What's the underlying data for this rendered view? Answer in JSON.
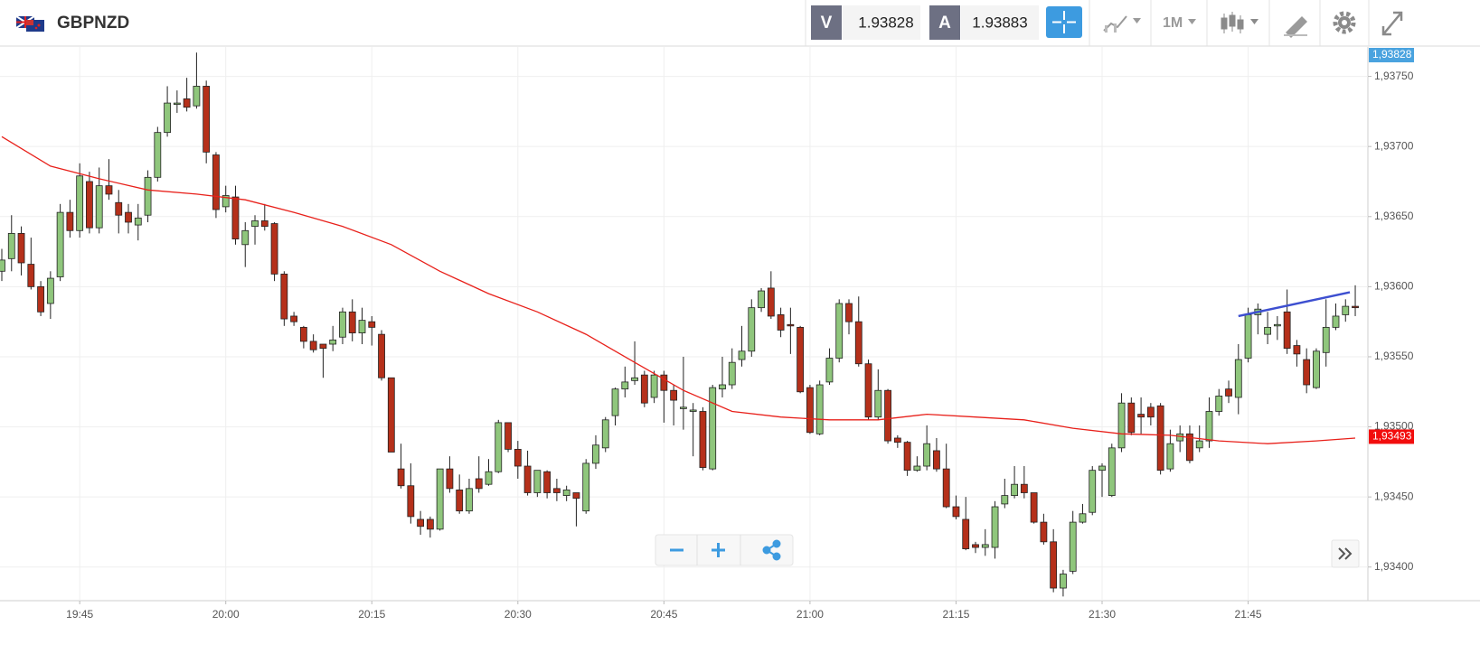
{
  "toolbar": {
    "symbol": "GBPNZD",
    "bid_label": "V",
    "bid": "1.93828",
    "ask_label": "A",
    "ask": "1.93883",
    "timeframe": "1M"
  },
  "chart_data": {
    "type": "candlestick",
    "x": [
      "19:37",
      "19:38",
      "19:39",
      "19:40",
      "19:41",
      "19:42",
      "19:43",
      "19:44",
      "19:45",
      "19:46",
      "19:47",
      "19:48",
      "19:49",
      "19:50",
      "19:51",
      "19:52",
      "19:53",
      "19:54",
      "19:55",
      "19:56",
      "19:57",
      "19:58",
      "19:59",
      "20:00",
      "20:01",
      "20:02",
      "20:03",
      "20:04",
      "20:05",
      "20:06",
      "20:07",
      "20:08",
      "20:09",
      "20:10",
      "20:11",
      "20:12",
      "20:13",
      "20:14",
      "20:15",
      "20:16",
      "20:17",
      "20:18",
      "20:19",
      "20:20",
      "20:21",
      "20:22",
      "20:23",
      "20:24",
      "20:25",
      "20:26",
      "20:27",
      "20:28",
      "20:29",
      "20:30",
      "20:31",
      "20:32",
      "20:33",
      "20:34",
      "20:35",
      "20:36",
      "20:37",
      "20:38",
      "20:39",
      "20:40",
      "20:41",
      "20:42",
      "20:43",
      "20:44",
      "20:45",
      "20:46",
      "20:47",
      "20:48",
      "20:49",
      "20:50",
      "20:51",
      "20:52",
      "20:53",
      "20:54",
      "20:55",
      "20:56",
      "20:57",
      "20:58",
      "20:59",
      "21:00",
      "21:01",
      "21:02",
      "21:03",
      "21:04",
      "21:05",
      "21:06",
      "21:07",
      "21:08",
      "21:09",
      "21:10",
      "21:11",
      "21:12",
      "21:13",
      "21:14",
      "21:15",
      "21:16",
      "21:17",
      "21:18",
      "21:19",
      "21:20",
      "21:21",
      "21:22",
      "21:23",
      "21:24",
      "21:25",
      "21:26",
      "21:27",
      "21:28",
      "21:29",
      "21:30",
      "21:31",
      "21:32",
      "21:33",
      "21:34",
      "21:35",
      "21:36",
      "21:37",
      "21:38",
      "21:39",
      "21:40",
      "21:41",
      "21:42",
      "21:43",
      "21:44",
      "21:45",
      "21:46",
      "21:47",
      "21:48",
      "21:49",
      "21:50",
      "21:51",
      "21:52",
      "21:53",
      "21:54",
      "21:55",
      "21:56"
    ],
    "ohlc": [
      [
        1.93611,
        1.93627,
        1.93604,
        1.93619
      ],
      [
        1.9362,
        1.93651,
        1.93611,
        1.93638
      ],
      [
        1.93638,
        1.93643,
        1.93608,
        1.93617
      ],
      [
        1.93616,
        1.93635,
        1.93598,
        1.936
      ],
      [
        1.936,
        1.93604,
        1.93579,
        1.93582
      ],
      [
        1.93588,
        1.93611,
        1.93577,
        1.93606
      ],
      [
        1.93607,
        1.93659,
        1.93604,
        1.93653
      ],
      [
        1.93653,
        1.93662,
        1.93635,
        1.9364
      ],
      [
        1.9364,
        1.93688,
        1.93635,
        1.93679
      ],
      [
        1.93675,
        1.93682,
        1.93638,
        1.93642
      ],
      [
        1.93642,
        1.93685,
        1.93638,
        1.93672
      ],
      [
        1.93672,
        1.93691,
        1.93662,
        1.93666
      ],
      [
        1.9366,
        1.93669,
        1.93638,
        1.93651
      ],
      [
        1.93653,
        1.93659,
        1.93638,
        1.93646
      ],
      [
        1.93644,
        1.93659,
        1.93633,
        1.93649
      ],
      [
        1.93651,
        1.93683,
        1.93646,
        1.93678
      ],
      [
        1.93678,
        1.93714,
        1.93675,
        1.9371
      ],
      [
        1.9371,
        1.93743,
        1.93707,
        1.93731
      ],
      [
        1.9373,
        1.9374,
        1.93724,
        1.93731
      ],
      [
        1.93734,
        1.93749,
        1.93725,
        1.93728
      ],
      [
        1.93729,
        1.93767,
        1.93727,
        1.93743
      ],
      [
        1.93743,
        1.93747,
        1.93688,
        1.93696
      ],
      [
        1.93694,
        1.93696,
        1.93649,
        1.93655
      ],
      [
        1.93657,
        1.93672,
        1.93653,
        1.93665
      ],
      [
        1.93664,
        1.93672,
        1.9363,
        1.93634
      ],
      [
        1.9363,
        1.93646,
        1.93614,
        1.9364
      ],
      [
        1.93643,
        1.93651,
        1.9363,
        1.93647
      ],
      [
        1.93647,
        1.93659,
        1.9364,
        1.93643
      ],
      [
        1.93645,
        1.93646,
        1.93604,
        1.93609
      ],
      [
        1.93609,
        1.93611,
        1.93572,
        1.93577
      ],
      [
        1.93579,
        1.93582,
        1.93572,
        1.93575
      ],
      [
        1.93571,
        1.93572,
        1.93556,
        1.93561
      ],
      [
        1.93561,
        1.93566,
        1.93553,
        1.93555
      ],
      [
        1.93559,
        1.93559,
        1.93535,
        1.93556
      ],
      [
        1.93559,
        1.93572,
        1.93554,
        1.93562
      ],
      [
        1.93564,
        1.93585,
        1.93559,
        1.93582
      ],
      [
        1.93582,
        1.93591,
        1.93561,
        1.93567
      ],
      [
        1.93567,
        1.93585,
        1.93559,
        1.93576
      ],
      [
        1.93575,
        1.93579,
        1.93558,
        1.93571
      ],
      [
        1.93566,
        1.93569,
        1.93533,
        1.93535
      ],
      [
        1.93535,
        1.93535,
        1.93482,
        1.93482
      ],
      [
        1.9347,
        1.93488,
        1.93456,
        1.93458
      ],
      [
        1.93458,
        1.93474,
        1.93431,
        1.93436
      ],
      [
        1.93434,
        1.9344,
        1.93423,
        1.93429
      ],
      [
        1.93434,
        1.93436,
        1.93421,
        1.93427
      ],
      [
        1.93427,
        1.9347,
        1.93426,
        1.9347
      ],
      [
        1.9347,
        1.93479,
        1.93453,
        1.93456
      ],
      [
        1.93455,
        1.93466,
        1.93438,
        1.9344
      ],
      [
        1.9344,
        1.93463,
        1.93438,
        1.93456
      ],
      [
        1.93463,
        1.93479,
        1.93453,
        1.93456
      ],
      [
        1.93459,
        1.93477,
        1.93458,
        1.93468
      ],
      [
        1.93468,
        1.93505,
        1.93467,
        1.93503
      ],
      [
        1.93503,
        1.93503,
        1.93482,
        1.93484
      ],
      [
        1.93484,
        1.9349,
        1.93463,
        1.93472
      ],
      [
        1.93472,
        1.93483,
        1.93451,
        1.93453
      ],
      [
        1.93453,
        1.93469,
        1.9345,
        1.93469
      ],
      [
        1.93468,
        1.93469,
        1.93449,
        1.93453
      ],
      [
        1.93456,
        1.93463,
        1.93447,
        1.93453
      ],
      [
        1.93451,
        1.93458,
        1.93447,
        1.93455
      ],
      [
        1.93453,
        1.93453,
        1.93429,
        1.93449
      ],
      [
        1.9344,
        1.93477,
        1.93438,
        1.93474
      ],
      [
        1.93474,
        1.93494,
        1.9347,
        1.93487
      ],
      [
        1.93485,
        1.93507,
        1.93482,
        1.93505
      ],
      [
        1.93508,
        1.93528,
        1.93501,
        1.93527
      ],
      [
        1.93527,
        1.93543,
        1.93521,
        1.93532
      ],
      [
        1.93533,
        1.93561,
        1.9353,
        1.93535
      ],
      [
        1.93537,
        1.9354,
        1.93514,
        1.93517
      ],
      [
        1.93521,
        1.9354,
        1.93517,
        1.93537
      ],
      [
        1.93537,
        1.9354,
        1.93503,
        1.93526
      ],
      [
        1.93526,
        1.9353,
        1.93501,
        1.93519
      ],
      [
        1.93513,
        1.9355,
        1.93498,
        1.93514
      ],
      [
        1.93511,
        1.93517,
        1.93479,
        1.93512
      ],
      [
        1.93511,
        1.93514,
        1.93469,
        1.93471
      ],
      [
        1.9347,
        1.9353,
        1.93469,
        1.93528
      ],
      [
        1.93527,
        1.9355,
        1.93521,
        1.9353
      ],
      [
        1.9353,
        1.93556,
        1.93527,
        1.93546
      ],
      [
        1.93548,
        1.93572,
        1.93543,
        1.93554
      ],
      [
        1.93554,
        1.93591,
        1.9355,
        1.93585
      ],
      [
        1.93585,
        1.93599,
        1.93582,
        1.93597
      ],
      [
        1.93599,
        1.93611,
        1.93577,
        1.93579
      ],
      [
        1.9358,
        1.93585,
        1.93564,
        1.93569
      ],
      [
        1.93573,
        1.93585,
        1.93552,
        1.93572
      ],
      [
        1.93571,
        1.93572,
        1.93524,
        1.93525
      ],
      [
        1.93528,
        1.9353,
        1.93495,
        1.93496
      ],
      [
        1.93495,
        1.93533,
        1.93494,
        1.9353
      ],
      [
        1.93532,
        1.93556,
        1.9353,
        1.93549
      ],
      [
        1.93549,
        1.93591,
        1.93546,
        1.93588
      ],
      [
        1.93588,
        1.93591,
        1.93566,
        1.93575
      ],
      [
        1.93575,
        1.93593,
        1.93543,
        1.93545
      ],
      [
        1.93545,
        1.93548,
        1.93505,
        1.93507
      ],
      [
        1.93507,
        1.93541,
        1.93505,
        1.93526
      ],
      [
        1.93526,
        1.93527,
        1.93488,
        1.9349
      ],
      [
        1.93492,
        1.93494,
        1.93485,
        1.93489
      ],
      [
        1.93489,
        1.9349,
        1.93465,
        1.93469
      ],
      [
        1.93469,
        1.93479,
        1.93468,
        1.93472
      ],
      [
        1.93472,
        1.93501,
        1.93469,
        1.93488
      ],
      [
        1.93483,
        1.93492,
        1.93468,
        1.9347
      ],
      [
        1.9347,
        1.93488,
        1.93442,
        1.93443
      ],
      [
        1.93443,
        1.93451,
        1.93434,
        1.93436
      ],
      [
        1.93434,
        1.9345,
        1.93412,
        1.93413
      ],
      [
        1.93416,
        1.93418,
        1.9341,
        1.93414
      ],
      [
        1.93414,
        1.93427,
        1.93408,
        1.93416
      ],
      [
        1.93414,
        1.93447,
        1.93406,
        1.93443
      ],
      [
        1.93445,
        1.93463,
        1.93442,
        1.93451
      ],
      [
        1.93451,
        1.93472,
        1.93449,
        1.93459
      ],
      [
        1.93459,
        1.93472,
        1.93449,
        1.93453
      ],
      [
        1.93453,
        1.93453,
        1.93431,
        1.93432
      ],
      [
        1.93432,
        1.93438,
        1.93416,
        1.93418
      ],
      [
        1.93418,
        1.93427,
        1.93382,
        1.93385
      ],
      [
        1.93385,
        1.93398,
        1.93379,
        1.93395
      ],
      [
        1.93397,
        1.9344,
        1.93395,
        1.93432
      ],
      [
        1.93432,
        1.93445,
        1.93431,
        1.93438
      ],
      [
        1.93439,
        1.93472,
        1.93437,
        1.93469
      ],
      [
        1.93469,
        1.93474,
        1.9345,
        1.93472
      ],
      [
        1.93451,
        1.93488,
        1.9345,
        1.93485
      ],
      [
        1.93485,
        1.93524,
        1.93482,
        1.93517
      ],
      [
        1.93517,
        1.93521,
        1.93494,
        1.93496
      ],
      [
        1.93509,
        1.93521,
        1.93495,
        1.93507
      ],
      [
        1.93514,
        1.93517,
        1.93501,
        1.93507
      ],
      [
        1.93515,
        1.93517,
        1.93466,
        1.93469
      ],
      [
        1.9347,
        1.93498,
        1.93468,
        1.93488
      ],
      [
        1.9349,
        1.93501,
        1.93482,
        1.93495
      ],
      [
        1.93495,
        1.93501,
        1.93474,
        1.93476
      ],
      [
        1.93485,
        1.93501,
        1.93482,
        1.9349
      ],
      [
        1.9349,
        1.93521,
        1.93485,
        1.93511
      ],
      [
        1.93511,
        1.93527,
        1.93508,
        1.93522
      ],
      [
        1.93527,
        1.93533,
        1.93517,
        1.93522
      ],
      [
        1.93521,
        1.93559,
        1.93509,
        1.93548
      ],
      [
        1.93549,
        1.93585,
        1.93546,
        1.9358
      ],
      [
        1.9358,
        1.93588,
        1.93566,
        1.93584
      ],
      [
        1.93566,
        1.93582,
        1.93559,
        1.93571
      ],
      [
        1.93572,
        1.93579,
        1.93562,
        1.93573
      ],
      [
        1.93582,
        1.93598,
        1.93552,
        1.93556
      ],
      [
        1.93558,
        1.93562,
        1.93543,
        1.93552
      ],
      [
        1.93548,
        1.93556,
        1.93524,
        1.9353
      ],
      [
        1.93528,
        1.93556,
        1.93527,
        1.93554
      ],
      [
        1.93553,
        1.93591,
        1.93543,
        1.93571
      ],
      [
        1.93571,
        1.93588,
        1.93569,
        1.93579
      ],
      [
        1.9358,
        1.93591,
        1.93575,
        1.93586
      ],
      [
        1.93586,
        1.93601,
        1.93579,
        1.93585
      ]
    ],
    "up_color": "#8fc67c",
    "down_color": "#b5301a",
    "moving_average": {
      "color": "#e8201a",
      "x": [
        "19:37",
        "19:42",
        "19:47",
        "19:52",
        "19:57",
        "20:02",
        "20:07",
        "20:12",
        "20:17",
        "20:22",
        "20:27",
        "20:32",
        "20:37",
        "20:42",
        "20:47",
        "20:52",
        "20:57",
        "21:02",
        "21:07",
        "21:12",
        "21:17",
        "21:22",
        "21:27",
        "21:32",
        "21:37",
        "21:42",
        "21:47",
        "21:52",
        "21:56"
      ],
      "values": [
        1.93707,
        1.93686,
        1.93677,
        1.93669,
        1.93666,
        1.93662,
        1.93653,
        1.93643,
        1.9363,
        1.93611,
        1.93595,
        1.93582,
        1.93566,
        1.93546,
        1.93526,
        1.93511,
        1.93507,
        1.93505,
        1.93505,
        1.93509,
        1.93507,
        1.93505,
        1.93499,
        1.93495,
        1.93494,
        1.9349,
        1.93488,
        1.9349,
        1.93492
      ]
    },
    "trendline": {
      "color": "#3d4fd0",
      "x": [
        "21:44",
        "21:56"
      ],
      "values": [
        1.93579,
        1.93596
      ]
    },
    "price_tags": [
      {
        "value": 1.93828,
        "label": "1,93828",
        "color": "#4aa3df"
      },
      {
        "value": 1.93493,
        "label": "1,93493",
        "color": "#f20d0d"
      }
    ],
    "ylim": [
      1.93376,
      1.93771
    ],
    "yticks": [
      {
        "value": 1.934,
        "label": "1,93400"
      },
      {
        "value": 1.9345,
        "label": "1,93450"
      },
      {
        "value": 1.935,
        "label": "1,93500"
      },
      {
        "value": 1.9355,
        "label": "1,93550"
      },
      {
        "value": 1.936,
        "label": "1,93600"
      },
      {
        "value": 1.9365,
        "label": "1,93650"
      },
      {
        "value": 1.937,
        "label": "1,93700"
      },
      {
        "value": 1.9375,
        "label": "1,93750"
      }
    ],
    "xticks": [
      "19:45",
      "20:00",
      "20:15",
      "20:30",
      "20:45",
      "21:00",
      "21:15",
      "21:30",
      "21:45"
    ],
    "grid": true
  }
}
